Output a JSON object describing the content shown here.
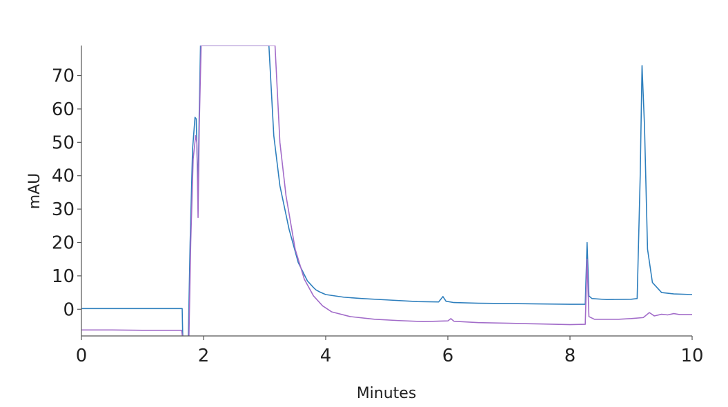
{
  "chart_data": {
    "type": "line",
    "xlabel": "Minutes",
    "ylabel": "mAU",
    "xlim": [
      0,
      10
    ],
    "ylim": [
      -8,
      79
    ],
    "x_ticks": [
      "0",
      "2",
      "4",
      "6",
      "8",
      "10"
    ],
    "y_ticks": [
      "0",
      "10",
      "20",
      "30",
      "40",
      "50",
      "60",
      "70"
    ],
    "grid": false,
    "legend": "none",
    "series": [
      {
        "color": "#2e7fbd",
        "points": [
          [
            0,
            0.2
          ],
          [
            0.5,
            0.2
          ],
          [
            1.0,
            0.2
          ],
          [
            1.5,
            0.2
          ],
          [
            1.65,
            0.2
          ],
          [
            1.66,
            -9
          ],
          [
            1.75,
            -9
          ],
          [
            1.78,
            20
          ],
          [
            1.82,
            48
          ],
          [
            1.86,
            57.5
          ],
          [
            1.88,
            57
          ],
          [
            1.91,
            35
          ],
          [
            1.93,
            60
          ],
          [
            1.95,
            79
          ],
          [
            2.0,
            79
          ],
          [
            3.07,
            79
          ],
          [
            3.15,
            52
          ],
          [
            3.25,
            37
          ],
          [
            3.4,
            24
          ],
          [
            3.55,
            14
          ],
          [
            3.7,
            8.5
          ],
          [
            3.8,
            6.5
          ],
          [
            3.84,
            5.8
          ],
          [
            3.9,
            5.2
          ],
          [
            4.0,
            4.4
          ],
          [
            4.3,
            3.6
          ],
          [
            4.6,
            3.2
          ],
          [
            5.0,
            2.8
          ],
          [
            5.5,
            2.3
          ],
          [
            5.85,
            2.2
          ],
          [
            5.92,
            3.8
          ],
          [
            5.97,
            2.4
          ],
          [
            6.1,
            2.0
          ],
          [
            6.5,
            1.8
          ],
          [
            7.0,
            1.7
          ],
          [
            7.5,
            1.6
          ],
          [
            8.0,
            1.5
          ],
          [
            8.25,
            1.5
          ],
          [
            8.28,
            20
          ],
          [
            8.31,
            4.0
          ],
          [
            8.36,
            3.2
          ],
          [
            8.6,
            2.9
          ],
          [
            9.0,
            3.0
          ],
          [
            9.1,
            3.2
          ],
          [
            9.15,
            40
          ],
          [
            9.18,
            73
          ],
          [
            9.22,
            55
          ],
          [
            9.27,
            18
          ],
          [
            9.35,
            8
          ],
          [
            9.5,
            5
          ],
          [
            9.7,
            4.6
          ],
          [
            10.0,
            4.4
          ]
        ]
      },
      {
        "color": "#a26cc9",
        "points": [
          [
            0,
            -6.2
          ],
          [
            0.5,
            -6.2
          ],
          [
            1.0,
            -6.3
          ],
          [
            1.5,
            -6.3
          ],
          [
            1.64,
            -6.3
          ],
          [
            1.66,
            -9
          ],
          [
            1.76,
            -9
          ],
          [
            1.79,
            20
          ],
          [
            1.83,
            45
          ],
          [
            1.87,
            52
          ],
          [
            1.89,
            50
          ],
          [
            1.91,
            27.5
          ],
          [
            1.93,
            55
          ],
          [
            1.96,
            79
          ],
          [
            2.0,
            79
          ],
          [
            3.17,
            79
          ],
          [
            3.25,
            50
          ],
          [
            3.35,
            34
          ],
          [
            3.5,
            18
          ],
          [
            3.65,
            9
          ],
          [
            3.8,
            4
          ],
          [
            3.95,
            1
          ],
          [
            4.1,
            -0.8
          ],
          [
            4.4,
            -2.2
          ],
          [
            4.8,
            -3.0
          ],
          [
            5.2,
            -3.4
          ],
          [
            5.6,
            -3.7
          ],
          [
            6.0,
            -3.5
          ],
          [
            6.05,
            -2.8
          ],
          [
            6.1,
            -3.6
          ],
          [
            6.5,
            -4.0
          ],
          [
            7.0,
            -4.2
          ],
          [
            7.5,
            -4.4
          ],
          [
            8.0,
            -4.6
          ],
          [
            8.25,
            -4.5
          ],
          [
            8.28,
            15
          ],
          [
            8.31,
            -2.2
          ],
          [
            8.4,
            -3.0
          ],
          [
            8.8,
            -3.0
          ],
          [
            9.0,
            -2.8
          ],
          [
            9.2,
            -2.5
          ],
          [
            9.3,
            -1.0
          ],
          [
            9.38,
            -2.0
          ],
          [
            9.5,
            -1.5
          ],
          [
            9.6,
            -1.7
          ],
          [
            9.7,
            -1.3
          ],
          [
            9.8,
            -1.6
          ],
          [
            10.0,
            -1.6
          ]
        ]
      }
    ]
  }
}
